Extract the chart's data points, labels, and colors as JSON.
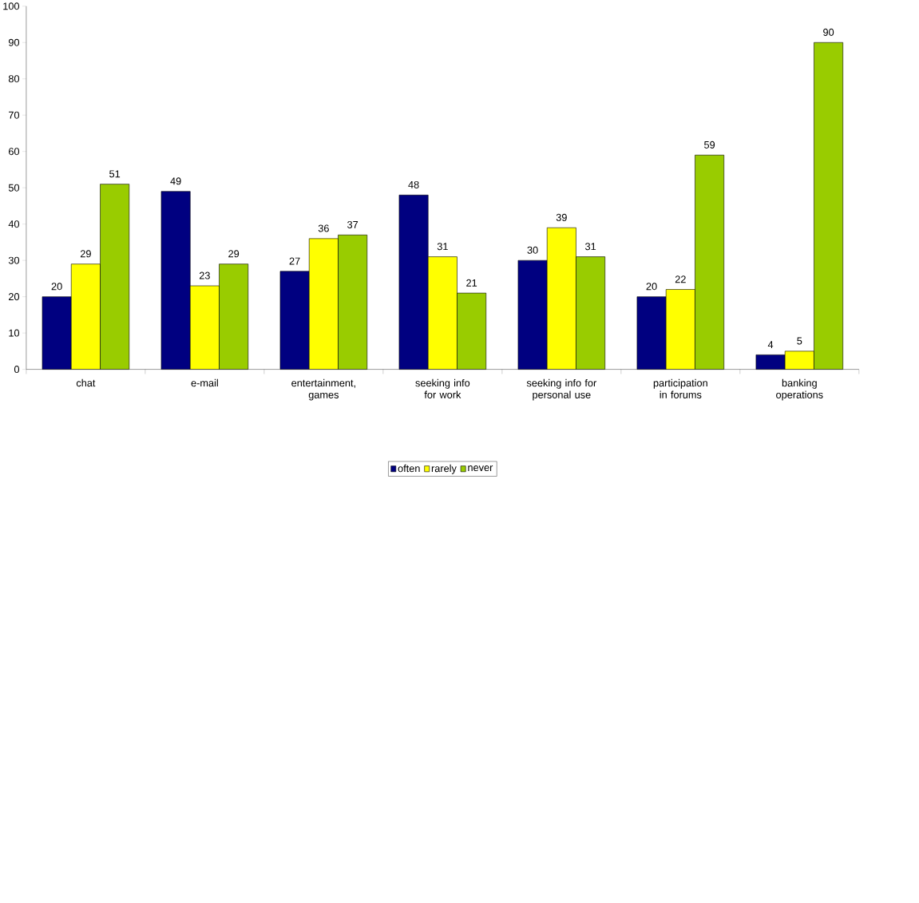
{
  "chart_data": {
    "type": "bar",
    "categories": [
      "chat",
      "e-mail",
      "entertainment, games",
      "seeking info for work",
      "seeking info for personal use",
      "participation in forums",
      "banking operations"
    ],
    "series": [
      {
        "name": "often",
        "color": "#000080",
        "values": [
          20,
          49,
          27,
          48,
          30,
          20,
          4
        ]
      },
      {
        "name": "rarely",
        "color": "#ffff00",
        "values": [
          29,
          23,
          36,
          31,
          39,
          22,
          5
        ]
      },
      {
        "name": "never",
        "color": "#99cc00",
        "values": [
          51,
          29,
          37,
          21,
          31,
          59,
          90
        ]
      }
    ],
    "ylim": [
      0,
      100
    ],
    "yticks": [
      0,
      10,
      20,
      30,
      40,
      50,
      60,
      70,
      80,
      90,
      100
    ],
    "data_labels": true,
    "legend": "bottom",
    "grid": false
  }
}
